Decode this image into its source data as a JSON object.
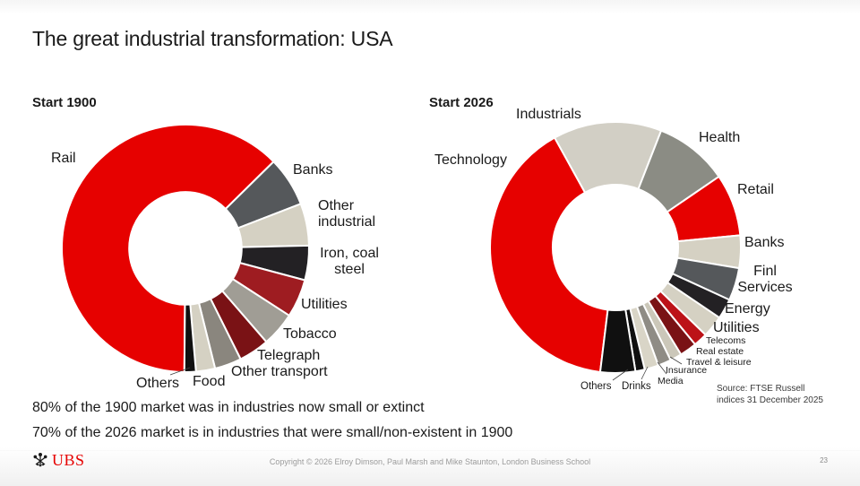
{
  "slide": {
    "title": "The great industrial transformation: USA",
    "statements": [
      "80% of the 1900 market was in industries now small or extinct",
      "70% of the 2026 market is in industries that were small/non-existent in 1900"
    ],
    "source": {
      "line1": "Source: FTSE Russell",
      "line2": "indices 31 December 2025"
    },
    "footer": {
      "brand": "UBS",
      "copyright": "Copyright © 2026 Elroy Dimson, Paul Marsh and Mike Staunton, London Business School",
      "page": "23"
    }
  },
  "colors": {
    "accent_red": "#e60100",
    "dark_slate": "#55585b",
    "light_greige": "#d5d1c3",
    "charcoal": "#232124",
    "crimson": "#9e1c21",
    "maroon": "#7a1215",
    "black": "#101010"
  },
  "chart_data": [
    {
      "type": "pie",
      "subtype": "donut",
      "title": "Start 1900",
      "start_angle_deg": 180.5,
      "inner_radius_ratio": 0.455,
      "units": "% of market capitalization",
      "segments": [
        {
          "label": "Rail",
          "value": 62.5,
          "color": "#e60100"
        },
        {
          "label": "Banks",
          "value": 6.5,
          "color": "#55585b"
        },
        {
          "label": "Other industrial",
          "value": 5.5,
          "color": "#d5d1c3"
        },
        {
          "label": "Iron, coal steel",
          "value": 4.5,
          "color": "#232124"
        },
        {
          "label": "Utilities",
          "value": 5.0,
          "color": "#9e1c21"
        },
        {
          "label": "Tobacco",
          "value": 4.5,
          "color": "#a09d95"
        },
        {
          "label": "Telegraph",
          "value": 4.0,
          "color": "#7a1215"
        },
        {
          "label": "Other transport",
          "value": 3.5,
          "color": "#8a867e"
        },
        {
          "label": "Food",
          "value": 2.5,
          "color": "#d5d1c3"
        },
        {
          "label": "Others",
          "value": 1.5,
          "color": "#101010"
        }
      ]
    },
    {
      "type": "pie",
      "subtype": "donut",
      "title": "Start 2026",
      "start_angle_deg": 187,
      "inner_radius_ratio": 0.5,
      "units": "% of market capitalization",
      "segments": [
        {
          "label": "Technology",
          "value": 40.0,
          "color": "#e60100"
        },
        {
          "label": "Industrials",
          "value": 14.0,
          "color": "#d2cfc5"
        },
        {
          "label": "Health",
          "value": 9.5,
          "color": "#8b8c84"
        },
        {
          "label": "Retail",
          "value": 8.0,
          "color": "#e60100"
        },
        {
          "label": "Banks",
          "value": 4.2,
          "color": "#d5d1c3"
        },
        {
          "label": "Finl Services",
          "value": 4.2,
          "color": "#55585b"
        },
        {
          "label": "Energy",
          "value": 2.6,
          "color": "#232124"
        },
        {
          "label": "Utilities",
          "value": 2.8,
          "color": "#d5d1c3"
        },
        {
          "label": "Telecoms",
          "value": 1.8,
          "color": "#bc1218"
        },
        {
          "label": "Real estate",
          "value": 2.2,
          "color": "#7a1215"
        },
        {
          "label": "Travel & leisure",
          "value": 1.5,
          "color": "#cbc7b9"
        },
        {
          "label": "Insurance",
          "value": 1.7,
          "color": "#8f8c85"
        },
        {
          "label": "Media",
          "value": 1.8,
          "color": "#d9d5c7"
        },
        {
          "label": "Drinks",
          "value": 1.2,
          "color": "#101010"
        },
        {
          "label": "Others",
          "value": 4.5,
          "color": "#101010"
        }
      ]
    }
  ]
}
